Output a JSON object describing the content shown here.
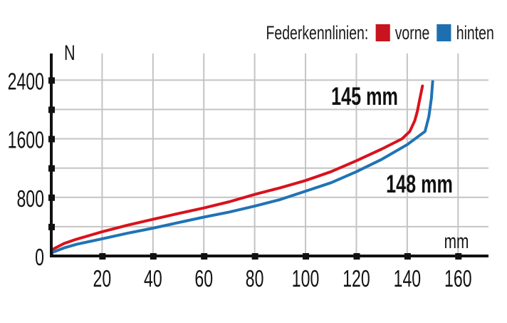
{
  "legend": {
    "title": "Federkennlinien:",
    "items": [
      {
        "label": "vorne",
        "color": "#c8141e"
      },
      {
        "label": "hinten",
        "color": "#1f6fb0"
      }
    ]
  },
  "annotations": {
    "red_end": "145 mm",
    "blue_end": "148 mm"
  },
  "axis": {
    "ylabel": "N",
    "xlabel": "mm"
  },
  "colors": {
    "axis": "#111111",
    "grid": "#c4c4c4",
    "vorne": "#d8121c",
    "hinten": "#1f73b4"
  },
  "chart_data": {
    "type": "line",
    "title": "Federkennlinien",
    "xlabel": "mm",
    "ylabel": "N",
    "xlim": [
      0,
      170
    ],
    "ylim": [
      0,
      2700
    ],
    "grid": true,
    "legend_position": "top-right",
    "x_ticks": [
      20,
      40,
      60,
      80,
      100,
      120,
      140,
      160
    ],
    "y_ticks": [
      0,
      800,
      1600,
      2400
    ],
    "y_minor_ticks": [
      400,
      1200,
      2000
    ],
    "series": [
      {
        "name": "vorne",
        "color": "#d8121c",
        "end_label": "145 mm",
        "x": [
          0,
          0.5,
          5,
          10,
          20,
          30,
          40,
          50,
          60,
          70,
          80,
          90,
          100,
          110,
          120,
          130,
          138,
          141,
          143,
          144,
          145,
          146
        ],
        "y": [
          0,
          90,
          170,
          230,
          330,
          420,
          500,
          580,
          655,
          740,
          840,
          930,
          1030,
          1150,
          1300,
          1460,
          1600,
          1700,
          1850,
          1980,
          2150,
          2320
        ]
      },
      {
        "name": "hinten",
        "color": "#1f73b4",
        "end_label": "148 mm",
        "x": [
          0,
          0.5,
          5,
          10,
          20,
          30,
          40,
          50,
          60,
          70,
          80,
          90,
          100,
          110,
          120,
          130,
          140,
          147,
          148.5,
          149.5,
          150
        ],
        "y": [
          0,
          50,
          110,
          160,
          235,
          310,
          380,
          455,
          530,
          600,
          680,
          770,
          885,
          1000,
          1150,
          1320,
          1520,
          1700,
          1900,
          2150,
          2380
        ]
      }
    ]
  }
}
